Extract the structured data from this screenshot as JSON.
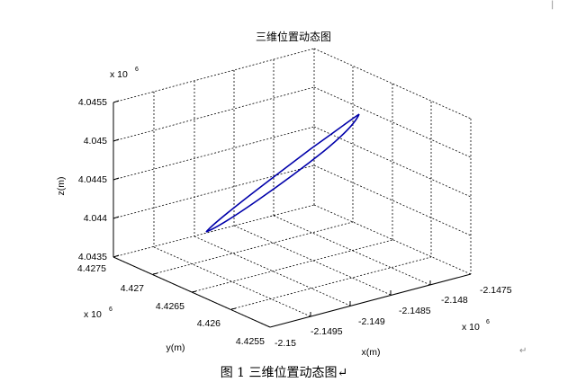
{
  "chart_data": {
    "type": "line3d",
    "title": "三维位置动态图",
    "xlabel": "x(m)",
    "ylabel": "y(m)",
    "zlabel": "z(m)",
    "x_ticks": [
      "-2.15",
      "-2.1495",
      "-2.149",
      "-2.1485",
      "-2.148",
      "-2.1475"
    ],
    "y_ticks": [
      "4.4255",
      "4.426",
      "4.4265",
      "4.427",
      "4.4275"
    ],
    "z_ticks": [
      "4.0435",
      "4.044",
      "4.0445",
      "4.045",
      "4.0455"
    ],
    "x_exponent": "x 10",
    "x_exponent_power": "6",
    "y_exponent": "x 10",
    "y_exponent_power": "6",
    "z_exponent": "x 10",
    "z_exponent_power": "6",
    "xlim": [
      -2.15,
      -2.1475
    ],
    "ylim": [
      4.4255,
      4.4275
    ],
    "zlim": [
      4.0435,
      4.0455
    ],
    "grid": true,
    "line_color": "#0000aa",
    "trajectory_endpoints": [
      {
        "x": -2.1475,
        "y": 4.4268,
        "z": 4.0454
      },
      {
        "x": -2.15,
        "y": 4.4261,
        "z": 4.0437
      }
    ]
  },
  "caption": "图 1 三维位置动态图↵",
  "return_mark": "↵",
  "corner_mark": "|"
}
